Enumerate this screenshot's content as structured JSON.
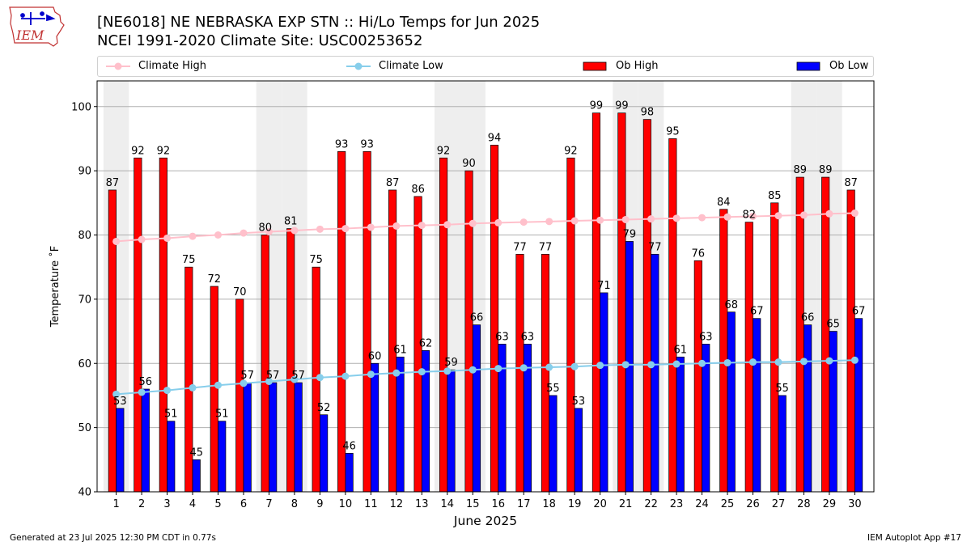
{
  "header": {
    "title": "[NE6018] NE NEBRASKA EXP STN :: Hi/Lo Temps for Jun 2025",
    "subtitle": "NCEI 1991-2020 Climate Site: USC00253652",
    "logo_text": "IEM"
  },
  "legend": {
    "items": [
      {
        "label": "Climate High"
      },
      {
        "label": "Climate Low"
      },
      {
        "label": "Ob High"
      },
      {
        "label": "Ob Low"
      }
    ],
    "placement": "top, above plot, single row"
  },
  "colors": {
    "ob_high": "#ff0000",
    "ob_low": "#0000ff",
    "climate_high": "#ffc0cb",
    "climate_low": "#87ceeb",
    "weekend_band": "#eeeeee",
    "grid": "#b0b0b0"
  },
  "chart_data": {
    "type": "bar",
    "xlabel": "June 2025",
    "ylabel": "Temperature ˚F",
    "ylim": [
      40,
      104
    ],
    "yticks": [
      40,
      50,
      60,
      70,
      80,
      90,
      100
    ],
    "grid": "horizontal",
    "categories": [
      "1",
      "2",
      "3",
      "4",
      "5",
      "6",
      "7",
      "8",
      "9",
      "10",
      "11",
      "12",
      "13",
      "14",
      "15",
      "16",
      "17",
      "18",
      "19",
      "20",
      "21",
      "22",
      "23",
      "24",
      "25",
      "26",
      "27",
      "28",
      "29",
      "30"
    ],
    "shaded_days": [
      1,
      7,
      8,
      14,
      15,
      21,
      22,
      28,
      29
    ],
    "series": [
      {
        "name": "Ob High",
        "kind": "bar",
        "values": [
          87,
          92,
          92,
          75,
          72,
          70,
          80,
          81,
          75,
          93,
          93,
          87,
          86,
          92,
          90,
          94,
          77,
          77,
          92,
          99,
          99,
          98,
          95,
          76,
          84,
          82,
          85,
          89,
          89,
          87
        ]
      },
      {
        "name": "Ob Low",
        "kind": "bar",
        "values": [
          53,
          56,
          51,
          45,
          51,
          57,
          57,
          57,
          52,
          46,
          60,
          61,
          62,
          59,
          66,
          63,
          63,
          55,
          53,
          71,
          79,
          77,
          61,
          63,
          68,
          67,
          55,
          66,
          65,
          67
        ]
      },
      {
        "name": "Climate High",
        "kind": "line",
        "values": [
          79.0,
          79.3,
          79.5,
          79.8,
          80.0,
          80.3,
          80.5,
          80.7,
          80.9,
          81.0,
          81.2,
          81.4,
          81.5,
          81.6,
          81.8,
          81.9,
          82.0,
          82.1,
          82.2,
          82.3,
          82.4,
          82.5,
          82.6,
          82.7,
          82.8,
          82.9,
          83.0,
          83.1,
          83.3,
          83.4
        ]
      },
      {
        "name": "Climate Low",
        "kind": "line",
        "values": [
          55.2,
          55.5,
          55.8,
          56.2,
          56.6,
          56.9,
          57.2,
          57.5,
          57.8,
          58.0,
          58.3,
          58.5,
          58.7,
          58.8,
          59.0,
          59.2,
          59.3,
          59.4,
          59.5,
          59.7,
          59.8,
          59.8,
          59.9,
          60.0,
          60.1,
          60.2,
          60.2,
          60.3,
          60.4,
          60.5
        ]
      }
    ]
  },
  "footer": {
    "left": "Generated at 23 Jul 2025 12:30 PM CDT in 0.77s",
    "right": "IEM Autoplot App #17"
  }
}
